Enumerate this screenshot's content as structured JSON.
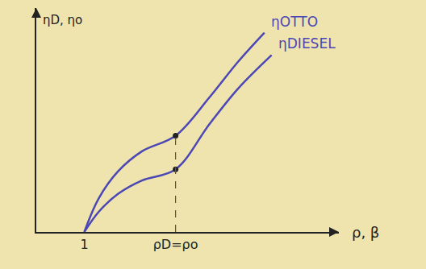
{
  "chart_data": {
    "type": "line",
    "x_label": "ρ, β",
    "y_label": "ηD, ηo",
    "xlim": [
      0,
      6.3
    ],
    "ylim": [
      0,
      1
    ],
    "xticks": [
      1,
      {
        "value": 2.9,
        "label": "ρD=ρo"
      }
    ],
    "yticks": [],
    "tick_labels": "x",
    "grid": false,
    "reference_x": 2.9,
    "series": [
      {
        "name": "ηOTTO",
        "color": "#4b47b5",
        "line_style": "solid",
        "x": [
          1,
          1.3,
          1.7,
          2.2,
          2.9,
          3.6,
          4.2,
          4.75
        ],
        "values": [
          0,
          0.15,
          0.27,
          0.36,
          0.43,
          0.6,
          0.76,
          0.89
        ]
      },
      {
        "name": "ηDIESEL",
        "color": "#4b47b5",
        "line_style": "solid",
        "x": [
          1,
          1.3,
          1.7,
          2.2,
          2.9,
          3.6,
          4.2,
          4.9
        ],
        "values": [
          0,
          0.09,
          0.17,
          0.23,
          0.28,
          0.48,
          0.64,
          0.79
        ]
      }
    ]
  }
}
